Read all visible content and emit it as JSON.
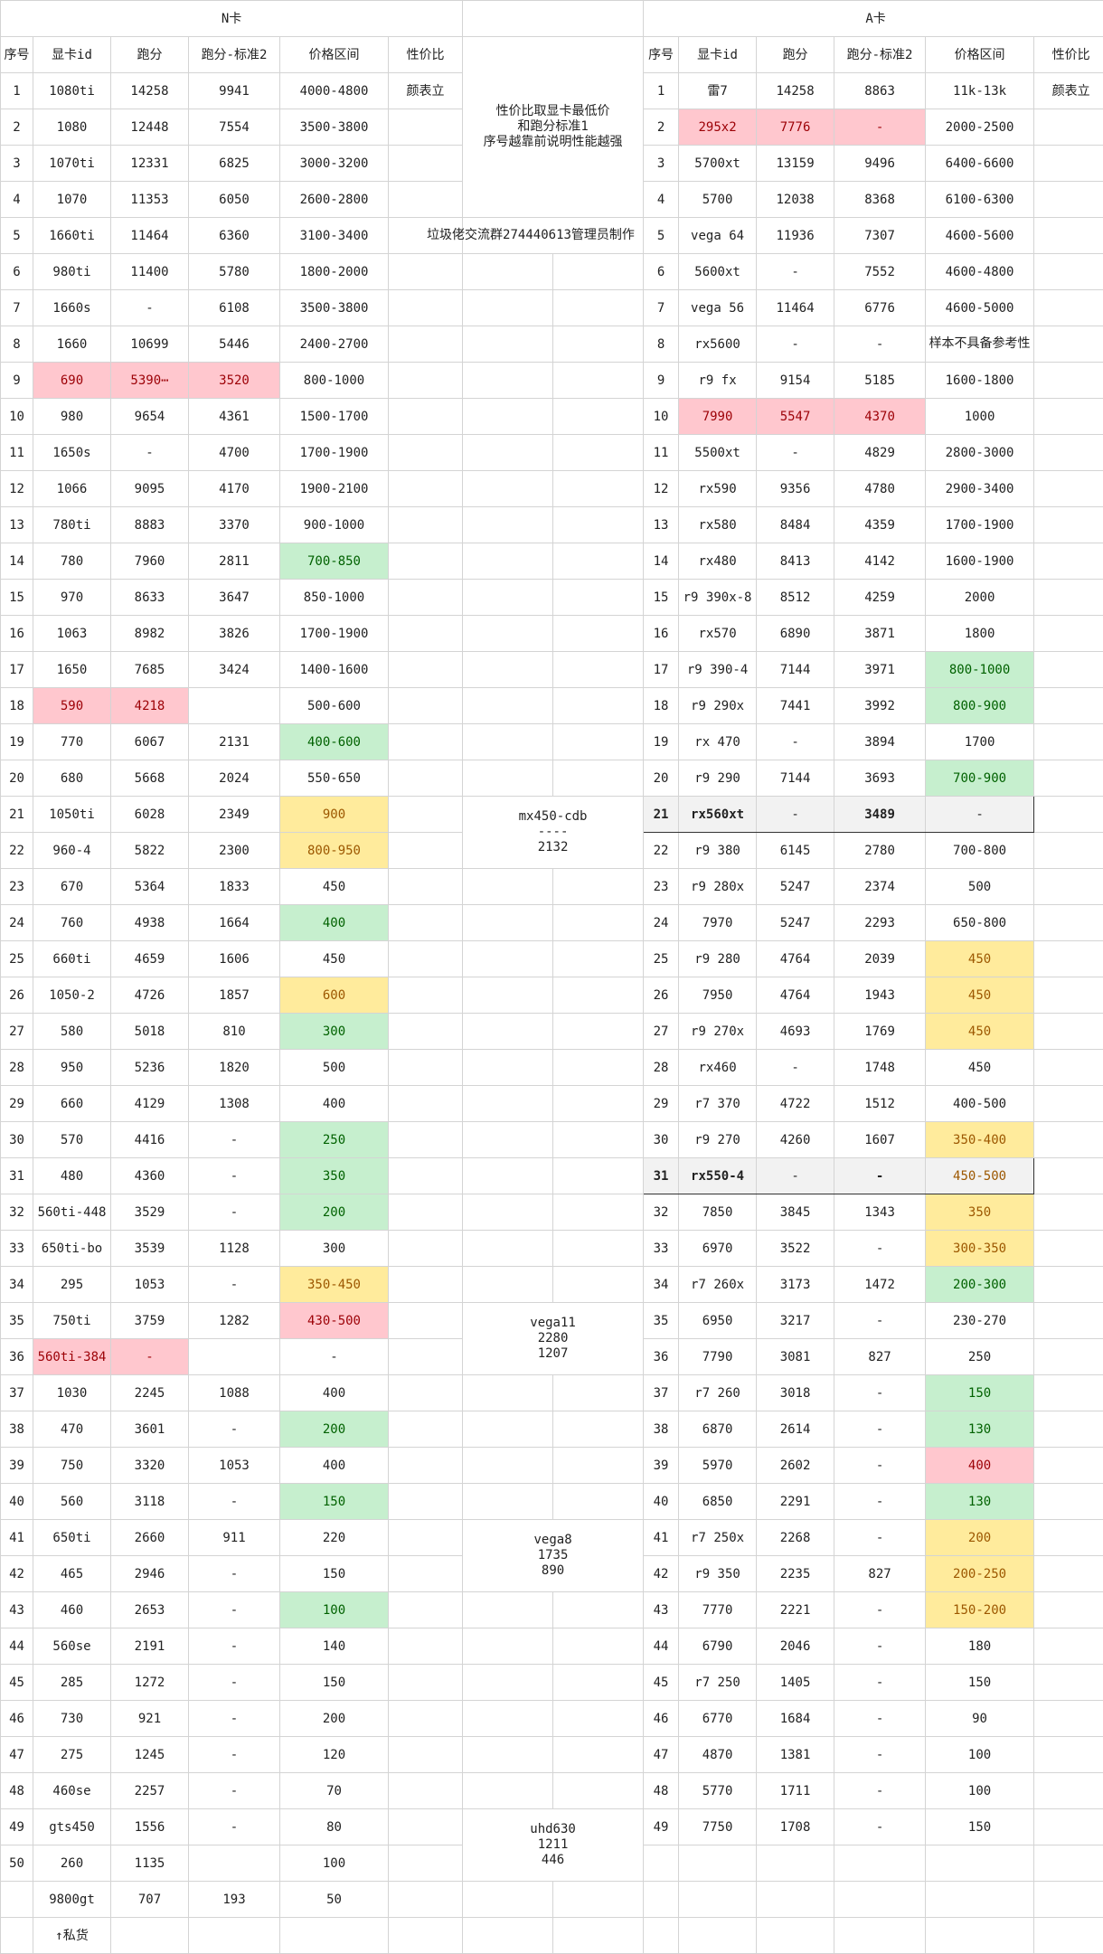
{
  "headers": {
    "n_title": "N卡",
    "a_title": "A卡",
    "cols": [
      "序号",
      "显卡id",
      "跑分",
      "跑分-标准2",
      "价格区间",
      "性价比"
    ]
  },
  "notes": {
    "note1": "性价比取显卡最低价\n和跑分标准1\n序号越靠前说明性能越强",
    "note2": "垃圾佬交流群274440613管理员制作",
    "mx450": "mx450-cdb\n----\n2132",
    "vega11": "vega11\n2280\n1207",
    "vega8": "vega8\n1735\n890",
    "uhd630": "uhd630\n1211\n446"
  },
  "n_rows": [
    [
      "1",
      "1080ti",
      "14258",
      "9941",
      "4000-4800",
      "颜表立"
    ],
    [
      "2",
      "1080",
      "12448",
      "7554",
      "3500-3800",
      ""
    ],
    [
      "3",
      "1070ti",
      "12331",
      "6825",
      "3000-3200",
      ""
    ],
    [
      "4",
      "1070",
      "11353",
      "6050",
      "2600-2800",
      ""
    ],
    [
      "5",
      "1660ti",
      "11464",
      "6360",
      "3100-3400",
      ""
    ],
    [
      "6",
      "980ti",
      "11400",
      "5780",
      "1800-2000",
      ""
    ],
    [
      "7",
      "1660s",
      "-",
      "6108",
      "3500-3800",
      ""
    ],
    [
      "8",
      "1660",
      "10699",
      "5446",
      "2400-2700",
      ""
    ],
    [
      "9",
      "690",
      "5390⋯",
      "3520",
      "800-1000",
      ""
    ],
    [
      "10",
      "980",
      "9654",
      "4361",
      "1500-1700",
      ""
    ],
    [
      "11",
      "1650s",
      "-",
      "4700",
      "1700-1900",
      ""
    ],
    [
      "12",
      "1066",
      "9095",
      "4170",
      "1900-2100",
      ""
    ],
    [
      "13",
      "780ti",
      "8883",
      "3370",
      "900-1000",
      ""
    ],
    [
      "14",
      "780",
      "7960",
      "2811",
      "700-850",
      ""
    ],
    [
      "15",
      "970",
      "8633",
      "3647",
      "850-1000",
      ""
    ],
    [
      "16",
      "1063",
      "8982",
      "3826",
      "1700-1900",
      ""
    ],
    [
      "17",
      "1650",
      "7685",
      "3424",
      "1400-1600",
      ""
    ],
    [
      "18",
      "590",
      "4218",
      "",
      "500-600",
      ""
    ],
    [
      "19",
      "770",
      "6067",
      "2131",
      "400-600",
      ""
    ],
    [
      "20",
      "680",
      "5668",
      "2024",
      "550-650",
      ""
    ],
    [
      "21",
      "1050ti",
      "6028",
      "2349",
      "900",
      ""
    ],
    [
      "22",
      "960-4",
      "5822",
      "2300",
      "800-950",
      ""
    ],
    [
      "23",
      "670",
      "5364",
      "1833",
      "450",
      ""
    ],
    [
      "24",
      "760",
      "4938",
      "1664",
      "400",
      ""
    ],
    [
      "25",
      "660ti",
      "4659",
      "1606",
      "450",
      ""
    ],
    [
      "26",
      "1050-2",
      "4726",
      "1857",
      "600",
      ""
    ],
    [
      "27",
      "580",
      "5018",
      "810",
      "300",
      ""
    ],
    [
      "28",
      "950",
      "5236",
      "1820",
      "500",
      ""
    ],
    [
      "29",
      "660",
      "4129",
      "1308",
      "400",
      ""
    ],
    [
      "30",
      "570",
      "4416",
      "-",
      "250",
      ""
    ],
    [
      "31",
      "480",
      "4360",
      "-",
      "350",
      ""
    ],
    [
      "32",
      "560ti-448",
      "3529",
      "-",
      "200",
      ""
    ],
    [
      "33",
      "650ti-bo",
      "3539",
      "1128",
      "300",
      ""
    ],
    [
      "34",
      "295",
      "1053",
      "-",
      "350-450",
      ""
    ],
    [
      "35",
      "750ti",
      "3759",
      "1282",
      "430-500",
      ""
    ],
    [
      "36",
      "560ti-384",
      "-",
      "",
      "-",
      ""
    ],
    [
      "37",
      "1030",
      "2245",
      "1088",
      "400",
      ""
    ],
    [
      "38",
      "470",
      "3601",
      "-",
      "200",
      ""
    ],
    [
      "39",
      "750",
      "3320",
      "1053",
      "400",
      ""
    ],
    [
      "40",
      "560",
      "3118",
      "-",
      "150",
      ""
    ],
    [
      "41",
      "650ti",
      "2660",
      "911",
      "220",
      ""
    ],
    [
      "42",
      "465",
      "2946",
      "-",
      "150",
      ""
    ],
    [
      "43",
      "460",
      "2653",
      "-",
      "100",
      ""
    ],
    [
      "44",
      "560se",
      "2191",
      "-",
      "140",
      ""
    ],
    [
      "45",
      "285",
      "1272",
      "-",
      "150",
      ""
    ],
    [
      "46",
      "730",
      "921",
      "-",
      "200",
      ""
    ],
    [
      "47",
      "275",
      "1245",
      "-",
      "120",
      ""
    ],
    [
      "48",
      "460se",
      "2257",
      "-",
      "70",
      ""
    ],
    [
      "49",
      "gts450",
      "1556",
      "-",
      "80",
      ""
    ],
    [
      "50",
      "260",
      "1135",
      "",
      "100",
      ""
    ],
    [
      "",
      "9800gt",
      "707",
      "193",
      "50",
      ""
    ],
    [
      "",
      "↑私货",
      "",
      "",
      "",
      ""
    ]
  ],
  "a_rows": [
    [
      "1",
      "雷7",
      "14258",
      "8863",
      "11k-13k",
      "颜表立"
    ],
    [
      "2",
      "295x2",
      "7776",
      "-",
      "2000-2500",
      ""
    ],
    [
      "3",
      "5700xt",
      "13159",
      "9496",
      "6400-6600",
      ""
    ],
    [
      "4",
      "5700",
      "12038",
      "8368",
      "6100-6300",
      ""
    ],
    [
      "5",
      "vega 64",
      "11936",
      "7307",
      "4600-5600",
      ""
    ],
    [
      "6",
      "5600xt",
      "-",
      "7552",
      "4600-4800",
      ""
    ],
    [
      "7",
      "vega 56",
      "11464",
      "6776",
      "4600-5000",
      ""
    ],
    [
      "8",
      "rx5600",
      "-",
      "-",
      "样本不具备参考性",
      ""
    ],
    [
      "9",
      "r9 fx",
      "9154",
      "5185",
      "1600-1800",
      ""
    ],
    [
      "10",
      "7990",
      "5547",
      "4370",
      "1000",
      ""
    ],
    [
      "11",
      "5500xt",
      "-",
      "4829",
      "2800-3000",
      ""
    ],
    [
      "12",
      "rx590",
      "9356",
      "4780",
      "2900-3400",
      ""
    ],
    [
      "13",
      "rx580",
      "8484",
      "4359",
      "1700-1900",
      ""
    ],
    [
      "14",
      "rx480",
      "8413",
      "4142",
      "1600-1900",
      ""
    ],
    [
      "15",
      "r9 390x-8",
      "8512",
      "4259",
      "2000",
      ""
    ],
    [
      "16",
      "rx570",
      "6890",
      "3871",
      "1800",
      ""
    ],
    [
      "17",
      "r9 390-4",
      "7144",
      "3971",
      "800-1000",
      ""
    ],
    [
      "18",
      "r9 290x",
      "7441",
      "3992",
      "800-900",
      ""
    ],
    [
      "19",
      "rx 470",
      "-",
      "3894",
      "1700",
      ""
    ],
    [
      "20",
      "r9 290",
      "7144",
      "3693",
      "700-900",
      ""
    ],
    [
      "21",
      "rx560xt",
      "-",
      "3489",
      "-",
      ""
    ],
    [
      "22",
      "r9 380",
      "6145",
      "2780",
      "700-800",
      ""
    ],
    [
      "23",
      "r9 280x",
      "5247",
      "2374",
      "500",
      ""
    ],
    [
      "24",
      "7970",
      "5247",
      "2293",
      "650-800",
      ""
    ],
    [
      "25",
      "r9 280",
      "4764",
      "2039",
      "450",
      ""
    ],
    [
      "26",
      "7950",
      "4764",
      "1943",
      "450",
      ""
    ],
    [
      "27",
      "r9 270x",
      "4693",
      "1769",
      "450",
      ""
    ],
    [
      "28",
      "rx460",
      "-",
      "1748",
      "450",
      ""
    ],
    [
      "29",
      "r7 370",
      "4722",
      "1512",
      "400-500",
      ""
    ],
    [
      "30",
      "r9 270",
      "4260",
      "1607",
      "350-400",
      ""
    ],
    [
      "31",
      "rx550-4",
      "-",
      "-",
      "450-500",
      ""
    ],
    [
      "32",
      "7850",
      "3845",
      "1343",
      "350",
      ""
    ],
    [
      "33",
      "6970",
      "3522",
      "-",
      "300-350",
      ""
    ],
    [
      "34",
      "r7 260x",
      "3173",
      "1472",
      "200-300",
      ""
    ],
    [
      "35",
      "6950",
      "3217",
      "-",
      "230-270",
      ""
    ],
    [
      "36",
      "7790",
      "3081",
      "827",
      "250",
      ""
    ],
    [
      "37",
      "r7 260",
      "3018",
      "-",
      "150",
      ""
    ],
    [
      "38",
      "6870",
      "2614",
      "-",
      "130",
      ""
    ],
    [
      "39",
      "5970",
      "2602",
      "-",
      "400",
      ""
    ],
    [
      "40",
      "6850",
      "2291",
      "-",
      "130",
      ""
    ],
    [
      "41",
      "r7 250x",
      "2268",
      "-",
      "200",
      ""
    ],
    [
      "42",
      "r9 350",
      "2235",
      "827",
      "200-250",
      ""
    ],
    [
      "43",
      "7770",
      "2221",
      "-",
      "150-200",
      ""
    ],
    [
      "44",
      "6790",
      "2046",
      "-",
      "180",
      ""
    ],
    [
      "45",
      "r7 250",
      "1405",
      "-",
      "150",
      ""
    ],
    [
      "46",
      "6770",
      "1684",
      "-",
      "90",
      ""
    ],
    [
      "47",
      "4870",
      "1381",
      "-",
      "100",
      ""
    ],
    [
      "48",
      "5770",
      "1711",
      "-",
      "100",
      ""
    ],
    [
      "49",
      "7750",
      "1708",
      "-",
      "150",
      ""
    ],
    [
      "",
      "",
      "",
      "",
      "",
      ""
    ],
    [
      "",
      "",
      "",
      "",
      "",
      ""
    ],
    [
      "",
      "",
      "",
      "",
      "",
      ""
    ]
  ],
  "colors": {
    "pink": "#ffc7ce",
    "green": "#c6efce",
    "yellow": "#ffeb9c",
    "gray": "#f2f2f2"
  }
}
